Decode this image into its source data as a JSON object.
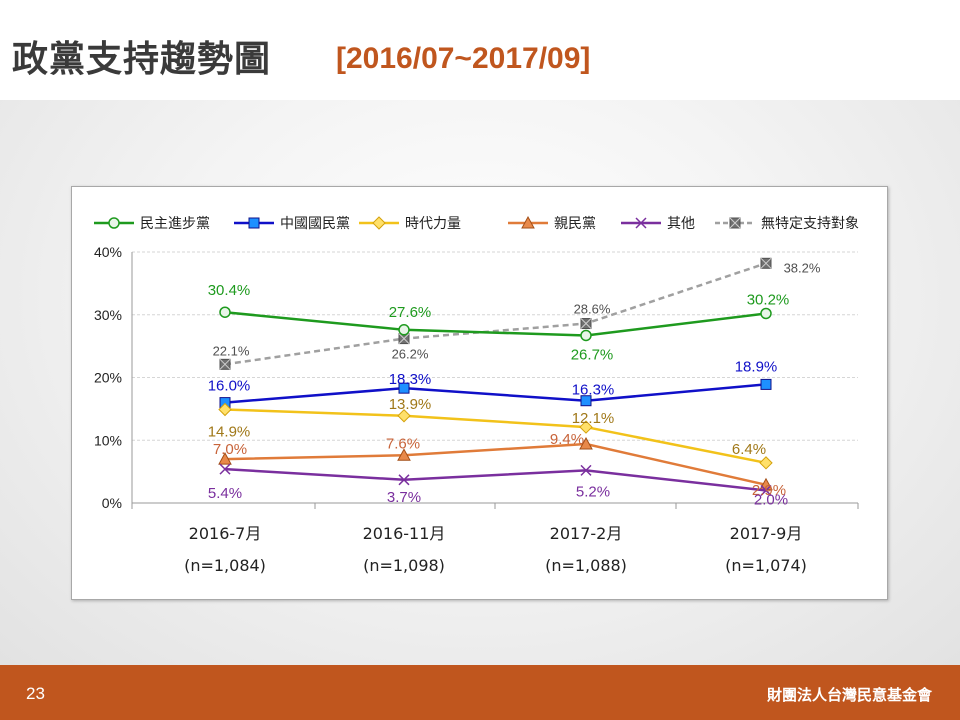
{
  "header": {
    "title": "政黨支持趨勢圖",
    "subtitle": "[2016/07~2017/09]"
  },
  "footer": {
    "page_number": "23",
    "organization": "財團法人台灣民意基金會"
  },
  "colors": {
    "accent": "#c0561e"
  },
  "chart_data": {
    "type": "line",
    "categories": [
      "2016-7月",
      "2016-11月",
      "2017-2月",
      "2017-9月"
    ],
    "sample_sizes": [
      "(n=1,084)",
      "(n=1,098)",
      "(n=1,088)",
      "(n=1,074)"
    ],
    "ylim": [
      0,
      40
    ],
    "yticks": [
      0,
      10,
      20,
      30,
      40
    ],
    "ytick_labels": [
      "0%",
      "10%",
      "20%",
      "30%",
      "40%"
    ],
    "grid": true,
    "legend": "top",
    "series": [
      {
        "name": "民主進步黨",
        "values": [
          30.4,
          27.6,
          26.7,
          30.2
        ],
        "labels": [
          "30.4%",
          "27.6%",
          "26.7%",
          "30.2%"
        ],
        "color": "#1e9a1e",
        "label_color": "#1e9a1e",
        "marker": "circle",
        "dashed": false
      },
      {
        "name": "中國國民黨",
        "values": [
          16.0,
          18.3,
          16.3,
          18.9
        ],
        "labels": [
          "16.0%",
          "18.3%",
          "16.3%",
          "18.9%"
        ],
        "color": "#1010c8",
        "label_color": "#1010c8",
        "marker": "square",
        "dashed": false
      },
      {
        "name": "時代力量",
        "values": [
          14.9,
          13.9,
          12.1,
          6.4
        ],
        "labels": [
          "14.9%",
          "13.9%",
          "12.1%",
          "6.4%"
        ],
        "color": "#f2c21a",
        "label_color": "#a07818",
        "marker": "diamond",
        "dashed": false
      },
      {
        "name": "親民黨",
        "values": [
          7.0,
          7.6,
          9.4,
          2.9
        ],
        "labels": [
          "7.0%",
          "7.6%",
          "9.4%",
          "2.9%"
        ],
        "color": "#e07b39",
        "label_color": "#c8643a",
        "marker": "triangle",
        "dashed": false
      },
      {
        "name": "其他",
        "values": [
          5.4,
          3.7,
          5.2,
          2.0
        ],
        "labels": [
          "5.4%",
          "3.7%",
          "5.2%",
          "2.0%"
        ],
        "color": "#7a2f9e",
        "label_color": "#7a2f9e",
        "marker": "x",
        "dashed": false
      },
      {
        "name": "無特定支持對象",
        "values": [
          22.1,
          26.2,
          28.6,
          38.2
        ],
        "labels": [
          "22.1%",
          "26.2%",
          "28.6%",
          "38.2%"
        ],
        "color": "#a0a0a0",
        "label_color": "#505050",
        "marker": "xsquare",
        "dashed": true
      }
    ]
  }
}
